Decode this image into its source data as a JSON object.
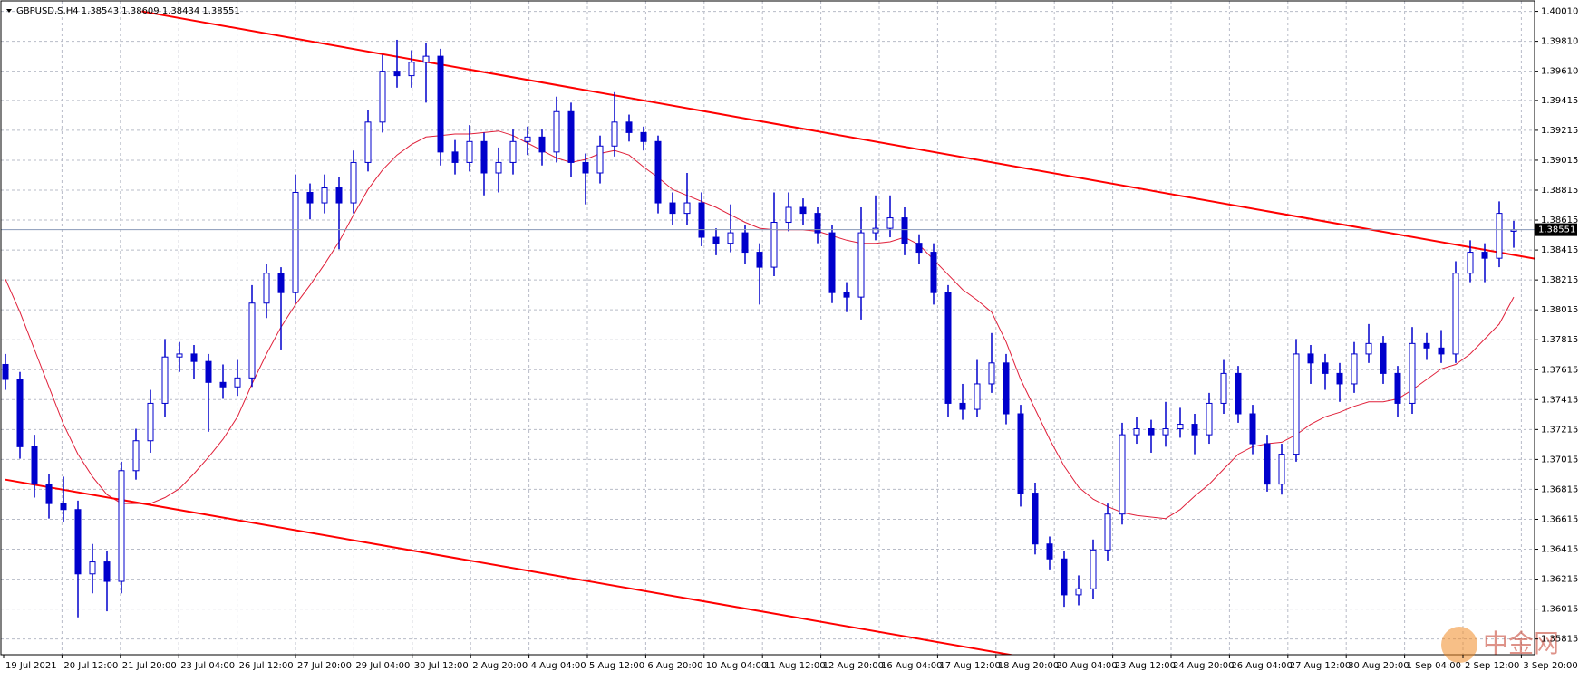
{
  "chart_data": {
    "type": "candlestick",
    "title": "GBPUSD.S,H4  1.38543 1.38609 1.38434 1.38551",
    "x": [
      "19 Jul 2021",
      "20 Jul 12:00",
      "21 Jul 20:00",
      "23 Jul 04:00",
      "26 Jul 12:00",
      "27 Jul 20:00",
      "29 Jul 04:00",
      "30 Jul 12:00",
      "2 Aug 20:00",
      "4 Aug 04:00",
      "5 Aug 12:00",
      "6 Aug 20:00",
      "10 Aug 04:00",
      "11 Aug 12:00",
      "12 Aug 20:00",
      "16 Aug 04:00",
      "17 Aug 12:00",
      "18 Aug 20:00",
      "20 Aug 04:00",
      "23 Aug 12:00",
      "24 Aug 20:00",
      "26 Aug 04:00",
      "27 Aug 12:00",
      "30 Aug 20:00",
      "1 Sep 04:00",
      "2 Sep 12:00",
      "3 Sep 20:00"
    ],
    "ylim": [
      1.3571,
      1.4008
    ],
    "yticks": [
      {
        "value": 1.4001,
        "label": "1.40010"
      },
      {
        "value": 1.3981,
        "label": "1.39810"
      },
      {
        "value": 1.3961,
        "label": "1.39610"
      },
      {
        "value": 1.39415,
        "label": "1.39415"
      },
      {
        "value": 1.39215,
        "label": "1.39215"
      },
      {
        "value": 1.39015,
        "label": "1.39015"
      },
      {
        "value": 1.38815,
        "label": "1.38815"
      },
      {
        "value": 1.38615,
        "label": "1.38615"
      },
      {
        "value": 1.38415,
        "label": "1.38415"
      },
      {
        "value": 1.38215,
        "label": "1.38215"
      },
      {
        "value": 1.38015,
        "label": "1.38015"
      },
      {
        "value": 1.37815,
        "label": "1.37815"
      },
      {
        "value": 1.37615,
        "label": "1.37615"
      },
      {
        "value": 1.37415,
        "label": "1.37415"
      },
      {
        "value": 1.37215,
        "label": "1.37215"
      },
      {
        "value": 1.37015,
        "label": "1.37015"
      },
      {
        "value": 1.36815,
        "label": "1.36815"
      },
      {
        "value": 1.36615,
        "label": "1.36615"
      },
      {
        "value": 1.36415,
        "label": "1.36415"
      },
      {
        "value": 1.36215,
        "label": "1.36215"
      },
      {
        "value": 1.36015,
        "label": "1.36015"
      },
      {
        "value": 1.35815,
        "label": "1.35815"
      }
    ],
    "grid": true,
    "color": "#0000cc",
    "last_price": {
      "value": 1.38551,
      "label": "1.38551"
    },
    "ohlc": [
      [
        1.3765,
        1.3772,
        1.3748,
        1.3755
      ],
      [
        1.3755,
        1.376,
        1.3702,
        1.371
      ],
      [
        1.371,
        1.3718,
        1.3676,
        1.3685
      ],
      [
        1.3685,
        1.3692,
        1.3662,
        1.3672
      ],
      [
        1.3672,
        1.369,
        1.366,
        1.3668
      ],
      [
        1.3668,
        1.3674,
        1.3596,
        1.3625
      ],
      [
        1.3625,
        1.3645,
        1.3612,
        1.3633
      ],
      [
        1.3633,
        1.364,
        1.36,
        1.362
      ],
      [
        1.362,
        1.37,
        1.3612,
        1.3694
      ],
      [
        1.3694,
        1.3722,
        1.3688,
        1.3714
      ],
      [
        1.3714,
        1.3748,
        1.3706,
        1.3739
      ],
      [
        1.3739,
        1.3782,
        1.373,
        1.377
      ],
      [
        1.377,
        1.378,
        1.376,
        1.3772
      ],
      [
        1.3772,
        1.3778,
        1.3755,
        1.3767
      ],
      [
        1.3767,
        1.3772,
        1.372,
        1.3753
      ],
      [
        1.3753,
        1.3765,
        1.3742,
        1.375
      ],
      [
        1.375,
        1.3768,
        1.3744,
        1.3756
      ],
      [
        1.3756,
        1.3818,
        1.375,
        1.3806
      ],
      [
        1.3806,
        1.3832,
        1.3796,
        1.3826
      ],
      [
        1.3826,
        1.383,
        1.3775,
        1.3813
      ],
      [
        1.3813,
        1.3892,
        1.3806,
        1.388
      ],
      [
        1.388,
        1.3886,
        1.3862,
        1.3873
      ],
      [
        1.3873,
        1.3892,
        1.3866,
        1.3883
      ],
      [
        1.3883,
        1.389,
        1.3842,
        1.3873
      ],
      [
        1.3873,
        1.3908,
        1.3866,
        1.39
      ],
      [
        1.39,
        1.3935,
        1.3894,
        1.3927
      ],
      [
        1.3927,
        1.3972,
        1.392,
        1.3961
      ],
      [
        1.3961,
        1.3982,
        1.395,
        1.3958
      ],
      [
        1.3958,
        1.3975,
        1.395,
        1.3967
      ],
      [
        1.3967,
        1.398,
        1.394,
        1.3971
      ],
      [
        1.3971,
        1.3976,
        1.3898,
        1.3907
      ],
      [
        1.3907,
        1.3915,
        1.3892,
        1.39
      ],
      [
        1.39,
        1.3925,
        1.3894,
        1.3914
      ],
      [
        1.3914,
        1.392,
        1.3878,
        1.3893
      ],
      [
        1.3893,
        1.391,
        1.388,
        1.39
      ],
      [
        1.39,
        1.3922,
        1.3892,
        1.3914
      ],
      [
        1.3914,
        1.3924,
        1.3905,
        1.3917
      ],
      [
        1.3917,
        1.3922,
        1.3898,
        1.3907
      ],
      [
        1.3907,
        1.3944,
        1.39,
        1.3934
      ],
      [
        1.3934,
        1.394,
        1.389,
        1.39
      ],
      [
        1.39,
        1.3906,
        1.3872,
        1.3893
      ],
      [
        1.3893,
        1.3918,
        1.3886,
        1.3911
      ],
      [
        1.3911,
        1.3947,
        1.3904,
        1.3927
      ],
      [
        1.3927,
        1.3932,
        1.3914,
        1.392
      ],
      [
        1.392,
        1.3924,
        1.3908,
        1.3914
      ],
      [
        1.3914,
        1.3918,
        1.3866,
        1.3873
      ],
      [
        1.3873,
        1.388,
        1.3858,
        1.3866
      ],
      [
        1.3866,
        1.3893,
        1.3858,
        1.3873
      ],
      [
        1.3873,
        1.388,
        1.3844,
        1.385
      ],
      [
        1.385,
        1.3856,
        1.3838,
        1.3846
      ],
      [
        1.3846,
        1.3872,
        1.384,
        1.3853
      ],
      [
        1.3853,
        1.3858,
        1.3832,
        1.384
      ],
      [
        1.384,
        1.3846,
        1.3805,
        1.383
      ],
      [
        1.383,
        1.388,
        1.3824,
        1.386
      ],
      [
        1.386,
        1.388,
        1.3854,
        1.387
      ],
      [
        1.387,
        1.3876,
        1.3858,
        1.3866
      ],
      [
        1.3866,
        1.387,
        1.3846,
        1.3853
      ],
      [
        1.3853,
        1.3858,
        1.3806,
        1.3813
      ],
      [
        1.3813,
        1.382,
        1.38,
        1.381
      ],
      [
        1.381,
        1.387,
        1.3795,
        1.3853
      ],
      [
        1.3853,
        1.3878,
        1.3848,
        1.3856
      ],
      [
        1.3856,
        1.3878,
        1.385,
        1.3863
      ],
      [
        1.3863,
        1.387,
        1.3838,
        1.3846
      ],
      [
        1.3846,
        1.3852,
        1.3832,
        1.384
      ],
      [
        1.384,
        1.3846,
        1.3805,
        1.3813
      ],
      [
        1.3813,
        1.3818,
        1.373,
        1.3739
      ],
      [
        1.3739,
        1.3752,
        1.3728,
        1.3735
      ],
      [
        1.3735,
        1.3768,
        1.373,
        1.3752
      ],
      [
        1.3752,
        1.3786,
        1.3746,
        1.3766
      ],
      [
        1.3766,
        1.3772,
        1.3725,
        1.3732
      ],
      [
        1.3732,
        1.3738,
        1.367,
        1.3679
      ],
      [
        1.3679,
        1.3686,
        1.3638,
        1.3645
      ],
      [
        1.3645,
        1.365,
        1.3628,
        1.3635
      ],
      [
        1.3635,
        1.364,
        1.3603,
        1.3611
      ],
      [
        1.3611,
        1.3624,
        1.3604,
        1.3615
      ],
      [
        1.3615,
        1.3648,
        1.3608,
        1.3641
      ],
      [
        1.3641,
        1.3672,
        1.3634,
        1.3665
      ],
      [
        1.3665,
        1.3726,
        1.3658,
        1.3718
      ],
      [
        1.3718,
        1.373,
        1.3712,
        1.3722
      ],
      [
        1.3722,
        1.3728,
        1.3706,
        1.3718
      ],
      [
        1.3718,
        1.374,
        1.371,
        1.3722
      ],
      [
        1.3722,
        1.3736,
        1.3716,
        1.3725
      ],
      [
        1.3725,
        1.3732,
        1.3705,
        1.3718
      ],
      [
        1.3718,
        1.3746,
        1.3712,
        1.3739
      ],
      [
        1.3739,
        1.3768,
        1.3732,
        1.3759
      ],
      [
        1.3759,
        1.3764,
        1.3726,
        1.3732
      ],
      [
        1.3732,
        1.3738,
        1.3705,
        1.3712
      ],
      [
        1.3712,
        1.3718,
        1.368,
        1.3685
      ],
      [
        1.3685,
        1.3712,
        1.3678,
        1.3705
      ],
      [
        1.3705,
        1.3782,
        1.37,
        1.3772
      ],
      [
        1.3772,
        1.3778,
        1.3752,
        1.3766
      ],
      [
        1.3766,
        1.3772,
        1.3748,
        1.3759
      ],
      [
        1.3759,
        1.3766,
        1.374,
        1.3752
      ],
      [
        1.3752,
        1.378,
        1.3746,
        1.3772
      ],
      [
        1.3772,
        1.3792,
        1.3766,
        1.3779
      ],
      [
        1.3779,
        1.3784,
        1.3752,
        1.3759
      ],
      [
        1.3759,
        1.3764,
        1.373,
        1.3739
      ],
      [
        1.3739,
        1.379,
        1.3732,
        1.3779
      ],
      [
        1.3779,
        1.3786,
        1.3768,
        1.3776
      ],
      [
        1.3776,
        1.3788,
        1.3766,
        1.3772
      ],
      [
        1.3772,
        1.3834,
        1.3766,
        1.3826
      ],
      [
        1.3826,
        1.3848,
        1.382,
        1.384
      ],
      [
        1.384,
        1.3846,
        1.382,
        1.3836
      ],
      [
        1.3836,
        1.3874,
        1.383,
        1.3866
      ],
      [
        1.3854,
        1.3861,
        1.3843,
        1.3855
      ]
    ],
    "ma": {
      "color": "#e0203a",
      "values": [
        1.3822,
        1.38,
        1.3775,
        1.375,
        1.3725,
        1.3705,
        1.369,
        1.3678,
        1.3672,
        1.3672,
        1.3672,
        1.3676,
        1.3682,
        1.3692,
        1.3703,
        1.3715,
        1.373,
        1.3752,
        1.3772,
        1.379,
        1.3805,
        1.3818,
        1.3832,
        1.3847,
        1.3865,
        1.3882,
        1.3895,
        1.3905,
        1.3912,
        1.3917,
        1.3918,
        1.3919,
        1.3919,
        1.392,
        1.3921,
        1.3918,
        1.3913,
        1.3908,
        1.3903,
        1.39,
        1.3902,
        1.3906,
        1.3908,
        1.3905,
        1.3897,
        1.389,
        1.3882,
        1.3878,
        1.3874,
        1.387,
        1.3865,
        1.386,
        1.3856,
        1.3855,
        1.3855,
        1.3855,
        1.3854,
        1.3851,
        1.3848,
        1.3846,
        1.3846,
        1.3847,
        1.385,
        1.3845,
        1.3835,
        1.3825,
        1.3815,
        1.3808,
        1.38,
        1.378,
        1.3755,
        1.3735,
        1.3715,
        1.3697,
        1.3683,
        1.3675,
        1.367,
        1.3666,
        1.3664,
        1.3663,
        1.3662,
        1.3668,
        1.3677,
        1.3685,
        1.3695,
        1.3705,
        1.371,
        1.3712,
        1.3713,
        1.3718,
        1.3725,
        1.373,
        1.3733,
        1.3737,
        1.374,
        1.374,
        1.3742,
        1.3748,
        1.3755,
        1.3762,
        1.3765,
        1.3772,
        1.3782,
        1.3792,
        1.381
      ]
    },
    "trendlines": [
      {
        "color": "#ff0000",
        "x": [
          9.4,
          105.5
        ],
        "y": [
          1.4001,
          1.38356
        ]
      },
      {
        "color": "#ff0000",
        "x": [
          0,
          74
        ],
        "y": [
          1.3688,
          1.3563
        ]
      }
    ],
    "watermark": "中金网"
  }
}
